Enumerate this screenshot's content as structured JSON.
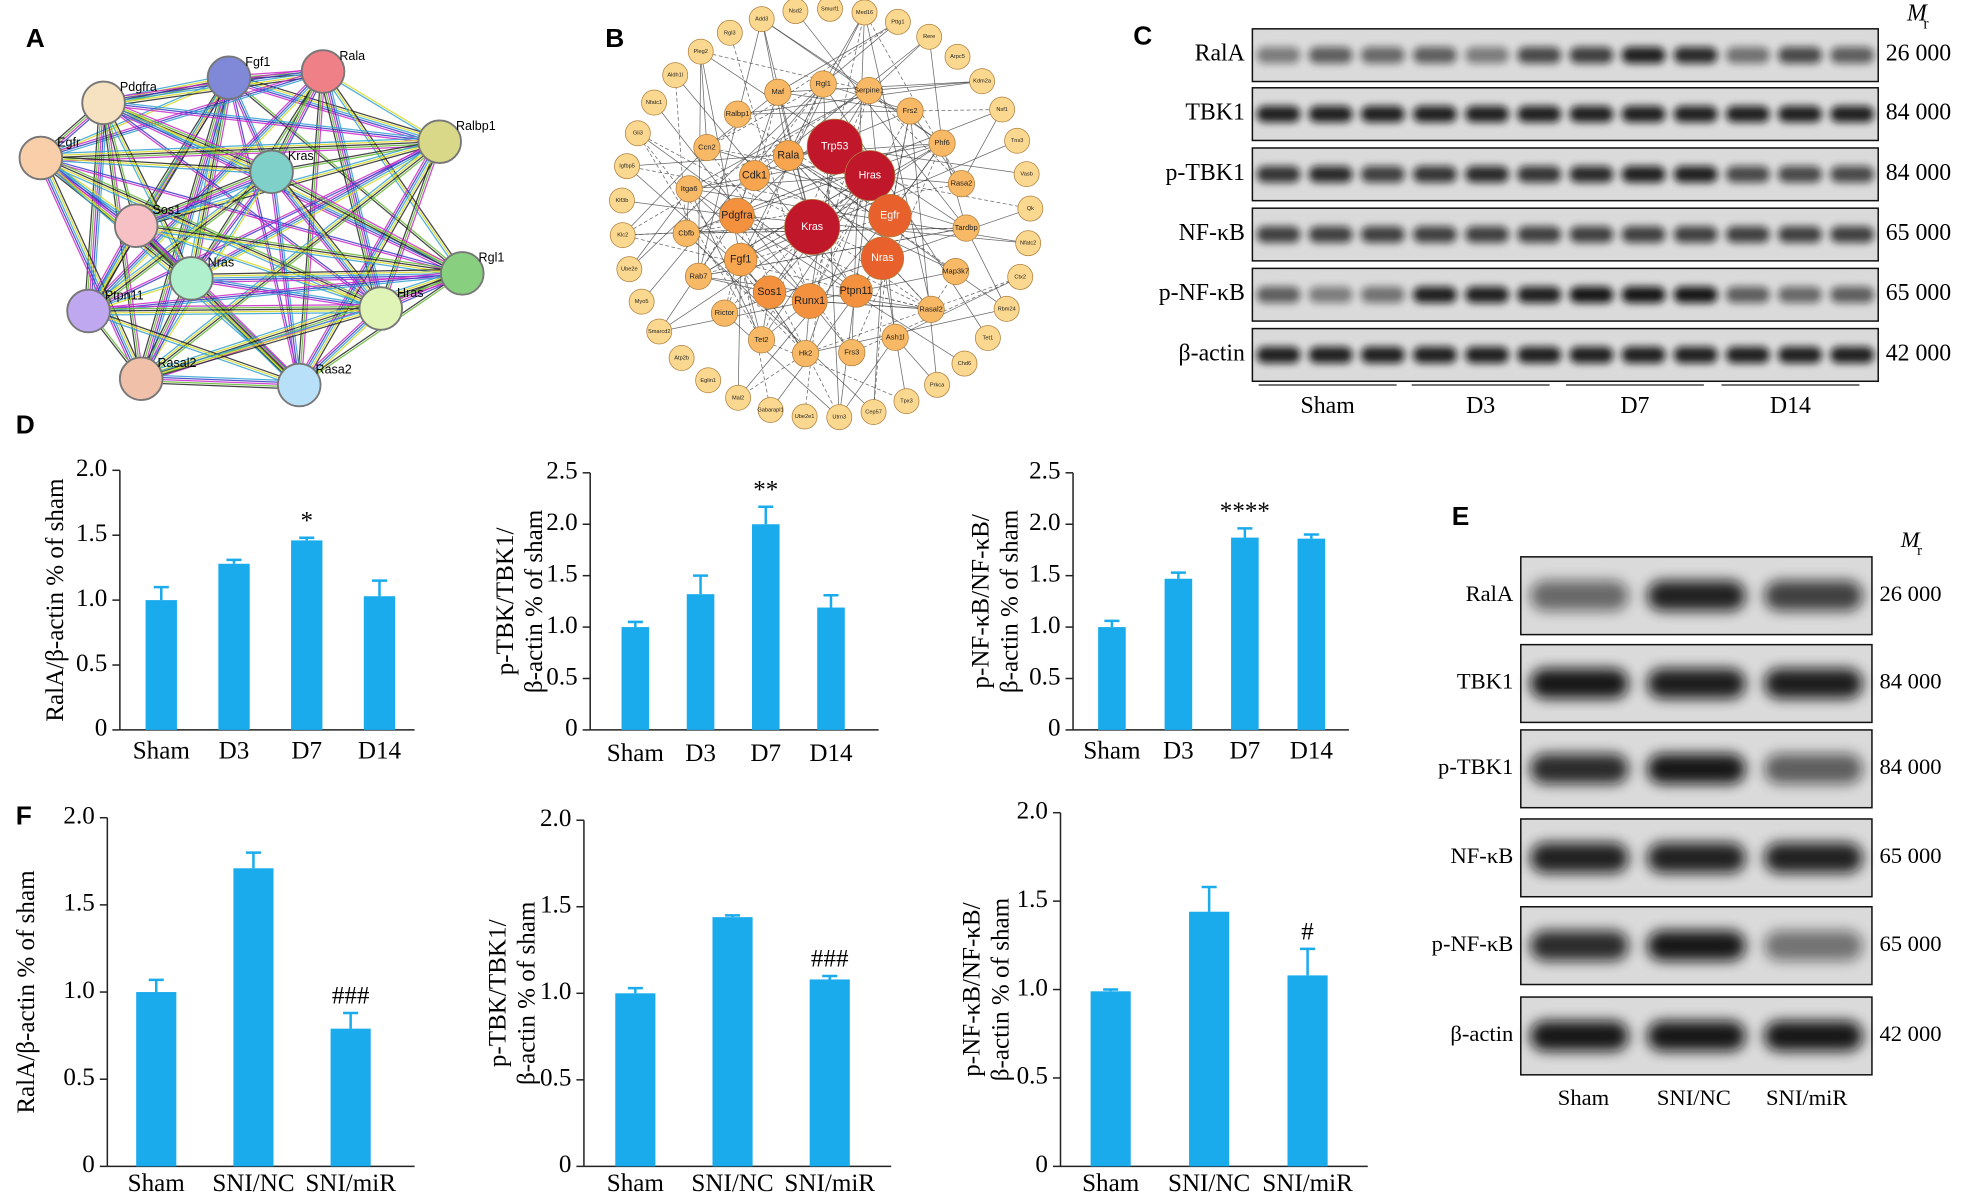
{
  "panel_labels": [
    "A",
    "B",
    "C",
    "D",
    "E",
    "F"
  ],
  "network_a": {
    "nodes": [
      "Fgf1",
      "Rala",
      "Pdgfra",
      "Ralbp1",
      "Egfr",
      "Kras",
      "Sos1",
      "Nras",
      "Rgl1",
      "Ptpn11",
      "Hras",
      "Rasal2",
      "Rasa2"
    ]
  },
  "network_b": {
    "core_nodes": [
      "Trp53",
      "Hras",
      "Kras",
      "Egfr",
      "Nras",
      "Rala",
      "Cdk1",
      "Pdgfra",
      "Fgf1",
      "Sos1",
      "Runx1",
      "Ptpn11"
    ],
    "middle_nodes": [
      "Maf",
      "Rgl1",
      "Serpine1",
      "Frs2",
      "Phf6",
      "Rasa2",
      "Tardbp",
      "Map3k7",
      "Rasal2",
      "Ash1l",
      "Frs3",
      "Hk2",
      "Tet2",
      "Rictor",
      "Rab7",
      "Cbfb",
      "Itga6",
      "Ccn2",
      "Ralbp1"
    ],
    "outer_nodes": [
      "Nsd2",
      "Smurf1",
      "Med16",
      "Pttg1",
      "Rere",
      "Arpc5",
      "Kdm2a",
      "Nsf1",
      "Tns3",
      "Vasb",
      "Qk",
      "Nfatc2",
      "Ctx2",
      "Rbm24",
      "Tet1",
      "Chd6",
      "Prkca",
      "Tpx3",
      "Cep57",
      "Utrn3",
      "Ube2e1",
      "Gabarapl1",
      "Mal2",
      "Eglin1",
      "Atp2b",
      "Smarcd2",
      "Myo5",
      "Ube2e",
      "Klc2",
      "Klf3b",
      "Igfbp5",
      "Gli3",
      "Nfatc1",
      "Aldh1l",
      "Pleg2",
      "Rgl3",
      "Add3"
    ]
  },
  "blot_c": {
    "rows": [
      "RalA",
      "TBK1",
      "p-TBK1",
      "NF-κB",
      "p-NF-κB",
      "β-actin"
    ],
    "mr": [
      "26 000",
      "84 000",
      "84 000",
      "65 000",
      "65 000",
      "42 000"
    ],
    "groups": [
      "Sham",
      "D3",
      "D7",
      "D14"
    ],
    "mr_label": {
      "main": "M",
      "sub": "r"
    }
  },
  "blot_e": {
    "rows": [
      "RalA",
      "TBK1",
      "p-TBK1",
      "NF-κB",
      "p-NF-κB",
      "β-actin"
    ],
    "mr": [
      "26 000",
      "84 000",
      "84 000",
      "65 000",
      "65 000",
      "42 000"
    ],
    "groups": [
      "Sham",
      "SNI/NC",
      "SNI/miR"
    ],
    "mr_label": {
      "main": "M",
      "sub": "r"
    }
  },
  "chart_data": [
    {
      "type": "bar",
      "ylabel": [
        "RalA/β-actin % of sham"
      ],
      "categories": [
        "Sham",
        "D3",
        "D7",
        "D14"
      ],
      "values": [
        1.0,
        1.28,
        1.46,
        1.03
      ],
      "errors": [
        0.1,
        0.03,
        0.02,
        0.12
      ],
      "significance": [
        null,
        null,
        "*",
        null
      ],
      "ylim": [
        0,
        2
      ],
      "yticks": [
        0,
        0.5,
        {
          "value": 1,
          "label": "1.0"
        },
        1.5,
        {
          "value": 2,
          "label": "2.0"
        }
      ],
      "color": "#1aabec"
    },
    {
      "type": "bar",
      "ylabel": [
        "p-TBK/TBK1/",
        "β-actin % of sham"
      ],
      "categories": [
        "Sham",
        "D3",
        "D7",
        "D14"
      ],
      "values": [
        1.0,
        1.32,
        2.0,
        1.19
      ],
      "errors": [
        0.05,
        0.18,
        0.17,
        0.12
      ],
      "significance": [
        null,
        null,
        "**",
        null
      ],
      "ylim": [
        0,
        2.5
      ],
      "yticks": [
        0,
        0.5,
        {
          "value": 1,
          "label": "1.0"
        },
        1.5,
        {
          "value": 2,
          "label": "2.0"
        },
        2.5
      ],
      "color": "#1aabec"
    },
    {
      "type": "bar",
      "ylabel": [
        "p-NF-κB/NF-κB/",
        "β-actin % of sham"
      ],
      "categories": [
        "Sham",
        "D3",
        "D7",
        "D14"
      ],
      "values": [
        1.0,
        1.47,
        1.87,
        1.86
      ],
      "errors": [
        0.06,
        0.06,
        0.09,
        0.04
      ],
      "significance": [
        null,
        null,
        "****",
        null
      ],
      "ylim": [
        0,
        2.5
      ],
      "yticks": [
        0,
        0.5,
        {
          "value": 1,
          "label": "1.0"
        },
        1.5,
        {
          "value": 2,
          "label": "2.0"
        },
        2.5
      ],
      "color": "#1aabec"
    },
    {
      "type": "bar",
      "ylabel": [
        "RalA/β-actin % of sham"
      ],
      "categories": [
        "Sham",
        "SNI/NC",
        "SNI/miR"
      ],
      "values": [
        1.0,
        1.71,
        0.79
      ],
      "errors": [
        0.07,
        0.09,
        0.09
      ],
      "significance": [
        null,
        null,
        "###"
      ],
      "ylim": [
        0,
        2
      ],
      "yticks": [
        0,
        0.5,
        {
          "value": 1,
          "label": "1.0"
        },
        1.5,
        {
          "value": 2,
          "label": "2.0"
        }
      ],
      "color": "#1aabec"
    },
    {
      "type": "bar",
      "ylabel": [
        "p-TBK/TBK1/",
        "β-actin % of sham"
      ],
      "categories": [
        "Sham",
        "SNI/NC",
        "SNI/miR"
      ],
      "values": [
        1.0,
        1.44,
        1.08
      ],
      "errors": [
        0.03,
        0.01,
        0.02
      ],
      "significance": [
        null,
        null,
        "###"
      ],
      "ylim": [
        0,
        2
      ],
      "yticks": [
        0,
        0.5,
        {
          "value": 1,
          "label": "1.0"
        },
        1.5,
        {
          "value": 2,
          "label": "2.0"
        }
      ],
      "color": "#1aabec"
    },
    {
      "type": "bar",
      "ylabel": [
        "p-NF-κB/NF-κB/",
        "β-actin % of sham"
      ],
      "categories": [
        "Sham",
        "SNI/NC",
        "SNI/miR"
      ],
      "values": [
        0.99,
        1.44,
        1.08
      ],
      "errors": [
        0.01,
        0.14,
        0.15
      ],
      "significance": [
        null,
        null,
        "#"
      ],
      "ylim": [
        0,
        2
      ],
      "yticks": [
        0,
        0.5,
        {
          "value": 1,
          "label": "1.0"
        },
        1.5,
        {
          "value": 2,
          "label": "2.0"
        }
      ],
      "color": "#1aabec"
    }
  ]
}
